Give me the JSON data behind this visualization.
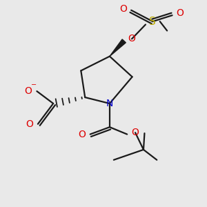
{
  "bg_color": "#e9e9e9",
  "atom_colors": {
    "C": "#1a1a1a",
    "N": "#0000cc",
    "O": "#dd0000",
    "S": "#bbaa00"
  },
  "bond_color": "#1a1a1a",
  "figsize": [
    3.0,
    3.0
  ],
  "dpi": 100
}
